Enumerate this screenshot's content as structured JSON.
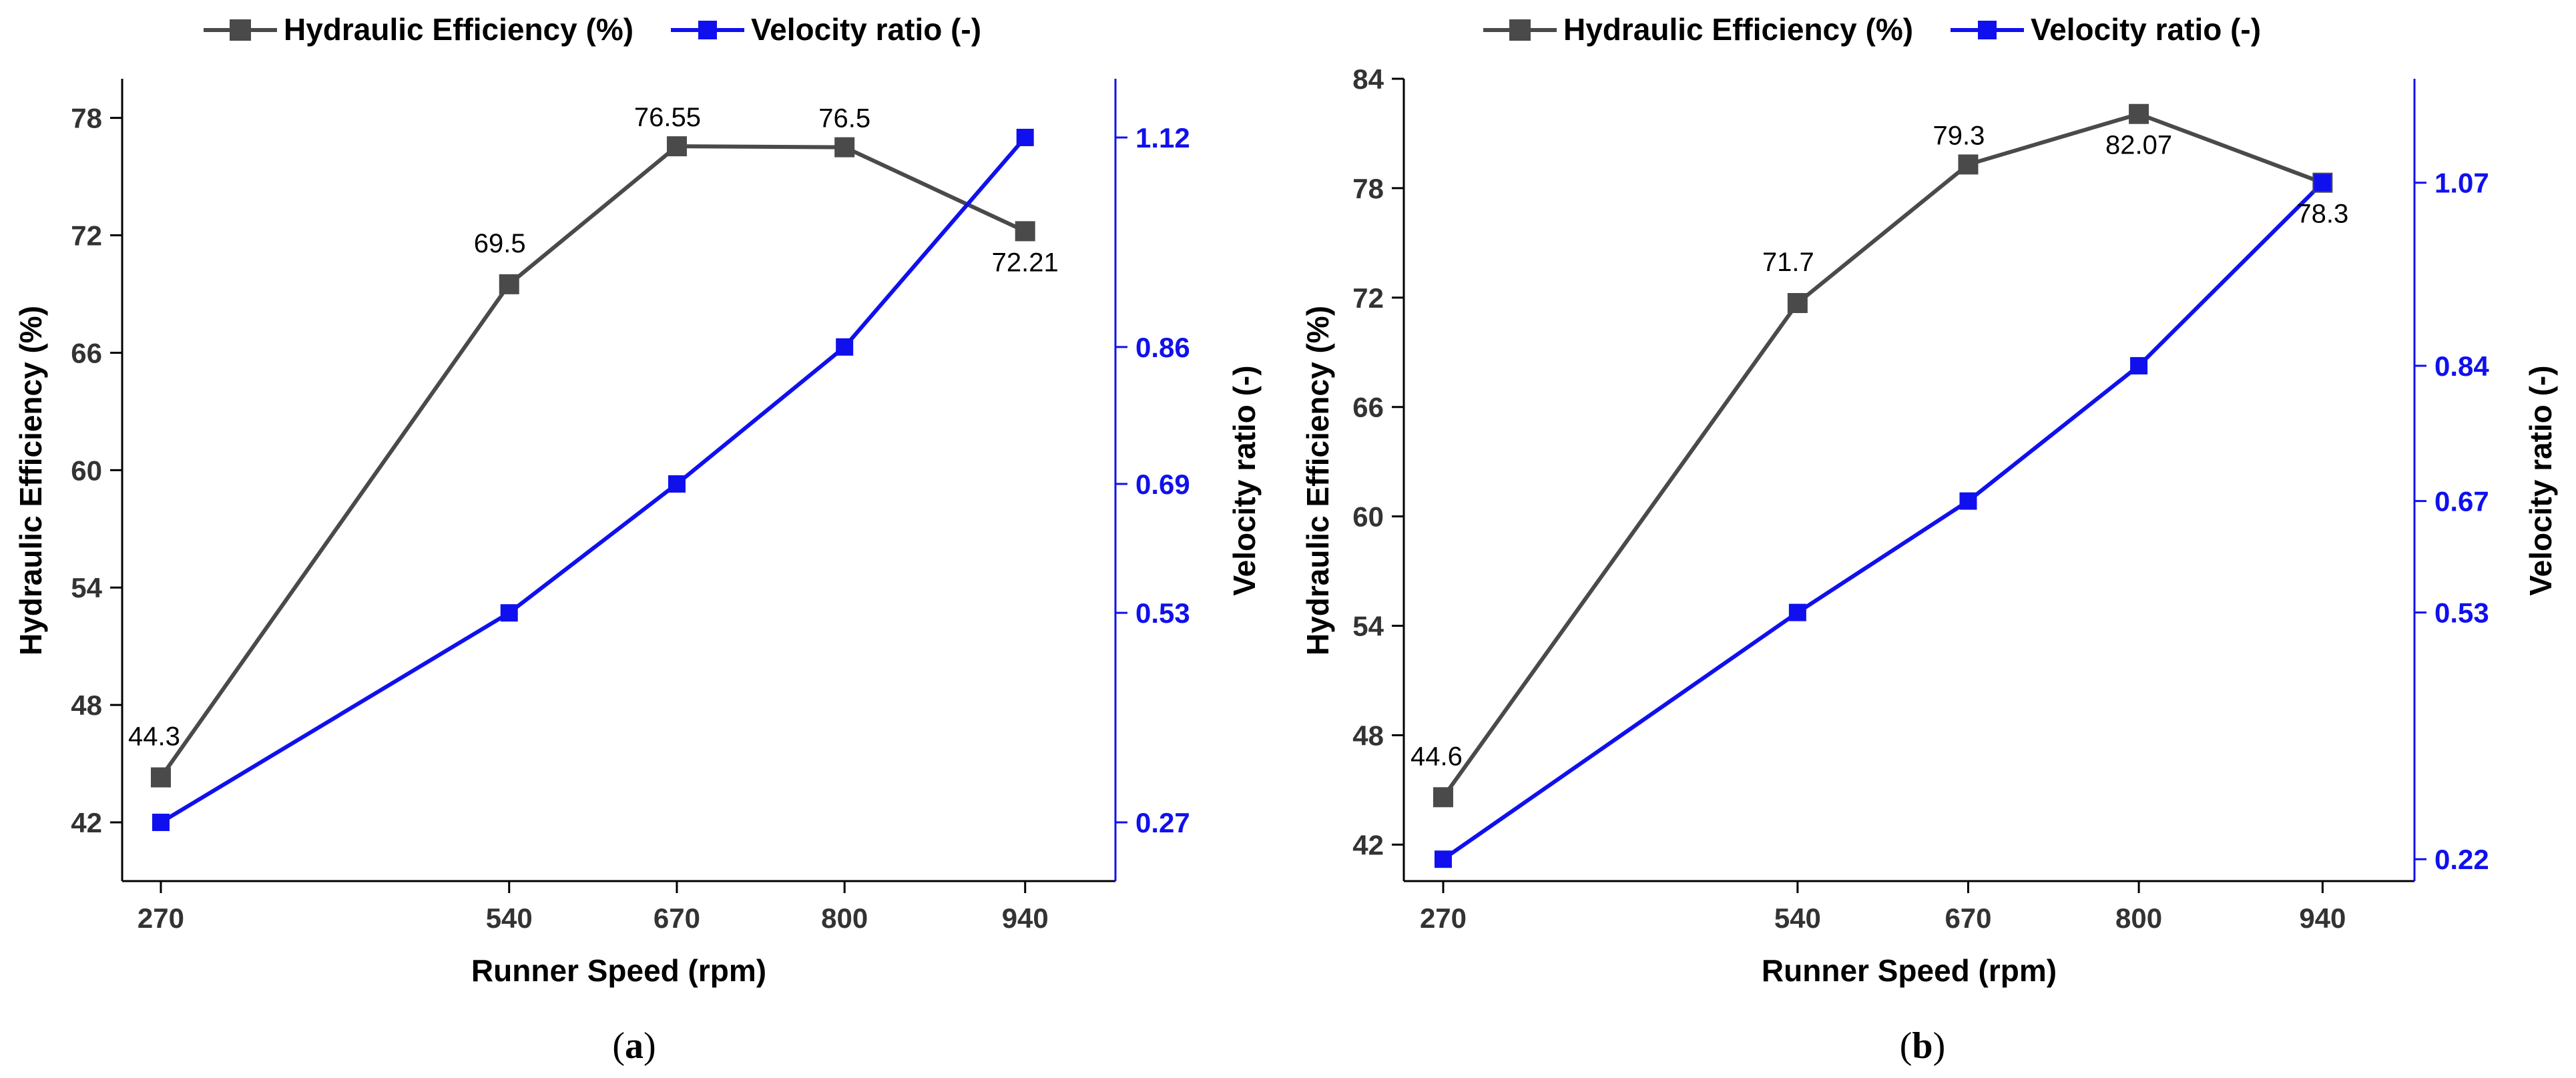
{
  "legend": {
    "efficiency_label": "Hydraulic Efficiency (%)",
    "velocity_label": "Velocity ratio (-)"
  },
  "colors": {
    "efficiency": "#4a4a4a",
    "velocity": "#1010ee"
  },
  "chart_data": [
    {
      "type": "line",
      "panel": "a",
      "x": [
        270,
        540,
        670,
        800,
        940
      ],
      "x_ticks": [
        "270",
        "540",
        "670",
        "800",
        "940"
      ],
      "xlabel": "Runner Speed (rpm)",
      "ylabel": "Hydraulic Efficiency (%)",
      "y2label": "Velocity ratio (-)",
      "xlim": [
        240,
        1010
      ],
      "ylim": [
        39,
        80
      ],
      "y_ticks": [
        42,
        48,
        54,
        60,
        66,
        72,
        78
      ],
      "y2_ticks": [
        {
          "value": 0.27,
          "label": "0.27"
        },
        {
          "value": 0.53,
          "label": "0.53"
        },
        {
          "value": 0.69,
          "label": "0.69"
        },
        {
          "value": 0.86,
          "label": "0.86"
        },
        {
          "value": 1.12,
          "label": "1.12"
        }
      ],
      "y2_calib": [
        [
          0.27,
          42
        ],
        [
          1.12,
          77
        ]
      ],
      "series": [
        {
          "name": "Hydraulic Efficiency (%)",
          "axis": "left",
          "values": [
            44.3,
            69.5,
            76.55,
            76.5,
            72.21
          ],
          "labels": [
            "44.3",
            "69.5",
            "76.55",
            "76.5",
            "72.21"
          ]
        },
        {
          "name": "Velocity ratio (-)",
          "axis": "right",
          "values": [
            0.27,
            0.53,
            0.69,
            0.86,
            1.12
          ]
        }
      ],
      "caption": "(a)"
    },
    {
      "type": "line",
      "panel": "b",
      "x": [
        270,
        540,
        670,
        800,
        940
      ],
      "x_ticks": [
        "270",
        "540",
        "670",
        "800",
        "940"
      ],
      "xlabel": "Runner Speed (rpm)",
      "ylabel": "Hydraulic Efficiency (%)",
      "y2label": "Velocity ratio (-)",
      "xlim": [
        240,
        1010
      ],
      "ylim": [
        40,
        84
      ],
      "y_ticks": [
        42,
        48,
        54,
        60,
        66,
        72,
        78,
        84
      ],
      "y2_ticks": [
        {
          "value": 0.22,
          "label": "0.22"
        },
        {
          "value": 0.53,
          "label": "0.53"
        },
        {
          "value": 0.67,
          "label": "0.67"
        },
        {
          "value": 0.84,
          "label": "0.84"
        },
        {
          "value": 1.07,
          "label": "1.07"
        }
      ],
      "y2_calib": [
        [
          0.22,
          41.2
        ],
        [
          1.07,
          78.3
        ]
      ],
      "series": [
        {
          "name": "Hydraulic Efficiency (%)",
          "axis": "left",
          "values": [
            44.6,
            71.7,
            79.3,
            82.07,
            78.3
          ],
          "labels": [
            "44.6",
            "71.7",
            "79.3",
            "82.07",
            "78.3"
          ]
        },
        {
          "name": "Velocity ratio (-)",
          "axis": "right",
          "values": [
            0.22,
            0.53,
            0.67,
            0.84,
            1.07
          ]
        }
      ],
      "caption": "(b)"
    }
  ]
}
